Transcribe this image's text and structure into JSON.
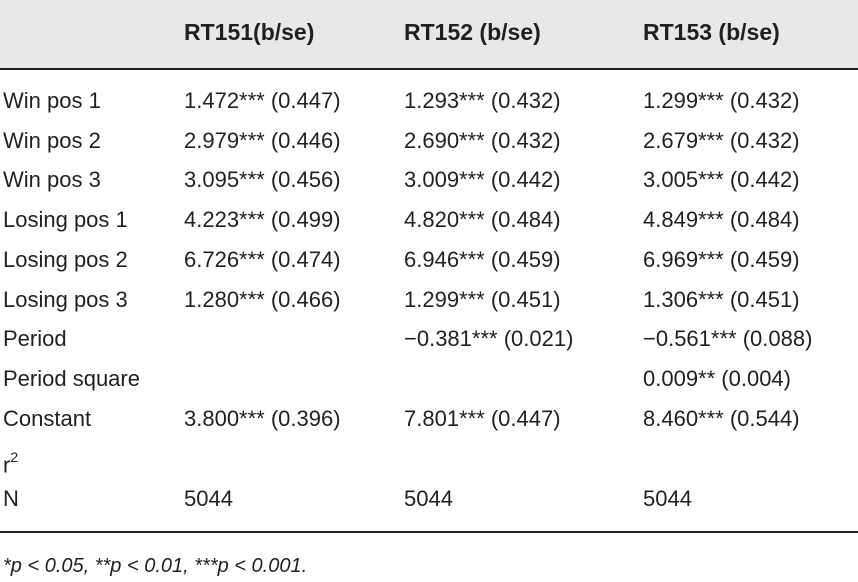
{
  "table": {
    "headers": [
      "",
      "RT151(b/se)",
      "RT152 (b/se)",
      "RT153 (b/se)"
    ],
    "rows": [
      {
        "label": "Win pos 1",
        "c1": "1.472*** (0.447)",
        "c2": "1.293*** (0.432)",
        "c3": "1.299*** (0.432)"
      },
      {
        "label": "Win pos 2",
        "c1": "2.979*** (0.446)",
        "c2": "2.690*** (0.432)",
        "c3": "2.679*** (0.432)"
      },
      {
        "label": "Win pos 3",
        "c1": "3.095*** (0.456)",
        "c2": "3.009*** (0.442)",
        "c3": "3.005*** (0.442)"
      },
      {
        "label": "Losing pos 1",
        "c1": "4.223*** (0.499)",
        "c2": "4.820*** (0.484)",
        "c3": "4.849*** (0.484)"
      },
      {
        "label": "Losing pos 2",
        "c1": "6.726*** (0.474)",
        "c2": "6.946*** (0.459)",
        "c3": "6.969*** (0.459)"
      },
      {
        "label": "Losing pos 3",
        "c1": "1.280*** (0.466)",
        "c2": "1.299*** (0.451)",
        "c3": "1.306*** (0.451)"
      },
      {
        "label": "Period",
        "c1": "",
        "c2": "−0.381*** (0.021)",
        "c3": "−0.561*** (0.088)"
      },
      {
        "label": "Period square",
        "c1": "",
        "c2": "",
        "c3": "0.009** (0.004)"
      },
      {
        "label": "Constant",
        "c1": "3.800*** (0.396)",
        "c2": "7.801*** (0.447)",
        "c3": "8.460*** (0.544)"
      },
      {
        "label_base": "r",
        "label_sup": "2",
        "c1": "",
        "c2": "",
        "c3": ""
      },
      {
        "label": "N",
        "c1": "5044",
        "c2": "5044",
        "c3": "5044"
      }
    ]
  },
  "footnote": "*p < 0.05,  **p < 0.01,  ***p < 0.001."
}
